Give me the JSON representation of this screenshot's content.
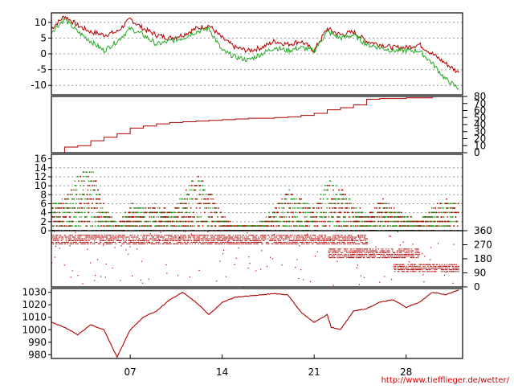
{
  "credit": "http://www.tiefflieger.de/wetter/",
  "colors": {
    "red": "#b00000",
    "green": "#22aa22",
    "grid": "#9a9a9a",
    "frame": "#000000"
  },
  "chart_data": [
    {
      "type": "line",
      "id": "temperature",
      "x_ticks": [
        "07",
        "14",
        "21",
        "28"
      ],
      "y_ticks": [
        "10",
        "5",
        "0",
        "-5",
        "-10"
      ],
      "ylim": [
        -13,
        13
      ],
      "grid": true,
      "series": [
        {
          "color": "red",
          "points": [
            [
              0,
              8
            ],
            [
              1,
              12
            ],
            [
              2,
              9
            ],
            [
              3,
              7
            ],
            [
              4,
              6
            ],
            [
              5,
              7
            ],
            [
              6,
              11
            ],
            [
              7,
              8
            ],
            [
              8,
              6
            ],
            [
              9,
              5
            ],
            [
              10,
              6
            ],
            [
              11,
              8
            ],
            [
              12,
              9
            ],
            [
              13,
              5
            ],
            [
              14,
              2
            ],
            [
              15,
              1
            ],
            [
              16,
              2
            ],
            [
              17,
              4
            ],
            [
              18,
              3
            ],
            [
              19,
              4
            ],
            [
              20,
              1
            ],
            [
              21,
              8
            ],
            [
              22,
              6
            ],
            [
              23,
              7
            ],
            [
              24,
              4
            ],
            [
              25,
              3
            ],
            [
              26,
              2
            ],
            [
              27,
              2
            ],
            [
              28,
              3
            ],
            [
              29,
              0
            ],
            [
              30,
              -3
            ],
            [
              31,
              -6
            ]
          ]
        },
        {
          "color": "green",
          "points": [
            [
              0,
              7
            ],
            [
              1,
              11
            ],
            [
              2,
              7
            ],
            [
              3,
              4
            ],
            [
              4,
              1
            ],
            [
              5,
              4
            ],
            [
              6,
              8
            ],
            [
              7,
              6
            ],
            [
              8,
              3
            ],
            [
              9,
              4
            ],
            [
              10,
              5
            ],
            [
              11,
              7
            ],
            [
              12,
              8
            ],
            [
              13,
              1
            ],
            [
              14,
              -1
            ],
            [
              15,
              -2
            ],
            [
              16,
              0
            ],
            [
              17,
              2
            ],
            [
              18,
              1
            ],
            [
              19,
              2
            ],
            [
              20,
              1
            ],
            [
              21,
              7
            ],
            [
              22,
              5
            ],
            [
              23,
              6
            ],
            [
              24,
              3
            ],
            [
              25,
              2
            ],
            [
              26,
              1
            ],
            [
              27,
              1
            ],
            [
              28,
              1
            ],
            [
              29,
              -3
            ],
            [
              30,
              -8
            ],
            [
              31,
              -11
            ]
          ]
        }
      ]
    },
    {
      "type": "line",
      "id": "cumulative",
      "y_ticks": [
        "80",
        "70",
        "60",
        "50",
        "40",
        "30",
        "20",
        "10",
        "0"
      ],
      "ylim": [
        0,
        80
      ],
      "series": [
        {
          "color": "red",
          "points": [
            [
              0,
              0
            ],
            [
              1,
              8
            ],
            [
              2,
              10
            ],
            [
              3,
              17
            ],
            [
              4,
              22
            ],
            [
              5,
              27
            ],
            [
              6,
              35
            ],
            [
              7,
              38
            ],
            [
              8,
              41
            ],
            [
              9,
              43
            ],
            [
              10,
              44
            ],
            [
              11,
              45
            ],
            [
              12,
              46
            ],
            [
              13,
              47
            ],
            [
              14,
              48
            ],
            [
              15,
              49
            ],
            [
              16,
              49
            ],
            [
              17,
              50
            ],
            [
              18,
              51
            ],
            [
              19,
              53
            ],
            [
              20,
              56
            ],
            [
              21,
              61
            ],
            [
              22,
              64
            ],
            [
              23,
              68
            ],
            [
              24,
              76
            ],
            [
              25,
              77
            ],
            [
              26,
              77
            ],
            [
              27,
              78
            ],
            [
              28,
              78
            ],
            [
              29,
              79
            ]
          ]
        }
      ]
    },
    {
      "type": "scatter",
      "id": "wind-speed",
      "y_ticks": [
        "16",
        "14",
        "12",
        "10",
        "8",
        "6",
        "4",
        "2",
        "0"
      ],
      "ylim": [
        0,
        17
      ],
      "envelope": [
        [
          0,
          6
        ],
        [
          1,
          7
        ],
        [
          2,
          12
        ],
        [
          3,
          14
        ],
        [
          4,
          5
        ],
        [
          5,
          1
        ],
        [
          6,
          6
        ],
        [
          7,
          5
        ],
        [
          8,
          6
        ],
        [
          9,
          4
        ],
        [
          10,
          8
        ],
        [
          11,
          13
        ],
        [
          12,
          9
        ],
        [
          13,
          3
        ],
        [
          14,
          1
        ],
        [
          15,
          1
        ],
        [
          16,
          2
        ],
        [
          17,
          5
        ],
        [
          18,
          9
        ],
        [
          19,
          7
        ],
        [
          20,
          5
        ],
        [
          21,
          12
        ],
        [
          22,
          9
        ],
        [
          23,
          6
        ],
        [
          24,
          3
        ],
        [
          25,
          7
        ],
        [
          26,
          5
        ],
        [
          27,
          3
        ],
        [
          28,
          2
        ],
        [
          29,
          5
        ],
        [
          30,
          7
        ],
        [
          31,
          6
        ]
      ]
    },
    {
      "type": "scatter",
      "id": "wind-direction",
      "y_ticks": [
        "360",
        "270",
        "180",
        "90",
        "0"
      ],
      "ylim": [
        0,
        360
      ],
      "bands": [
        [
          270,
          330,
          0,
          24
        ],
        [
          180,
          250,
          21,
          28
        ],
        [
          90,
          150,
          26,
          31
        ]
      ]
    },
    {
      "type": "line",
      "id": "pressure",
      "y_ticks": [
        "1030",
        "1020",
        "1010",
        "1000",
        "990",
        "980"
      ],
      "ylim": [
        977,
        1033
      ],
      "series": [
        {
          "color": "red",
          "points": [
            [
              0,
              1006
            ],
            [
              1,
              1002
            ],
            [
              2,
              996
            ],
            [
              3,
              1004
            ],
            [
              4,
              1000
            ],
            [
              5,
              978
            ],
            [
              6,
              1000
            ],
            [
              7,
              1010
            ],
            [
              8,
              1015
            ],
            [
              9,
              1024
            ],
            [
              10,
              1030
            ],
            [
              11,
              1022
            ],
            [
              12,
              1012
            ],
            [
              13,
              1022
            ],
            [
              14,
              1026
            ],
            [
              15,
              1027
            ],
            [
              16,
              1028
            ],
            [
              17,
              1029
            ],
            [
              18,
              1028
            ],
            [
              19,
              1014
            ],
            [
              20,
              1006
            ],
            [
              21,
              1012
            ],
            [
              21.3,
              1002
            ],
            [
              22,
              1000
            ],
            [
              23,
              1015
            ],
            [
              24,
              1017
            ],
            [
              25,
              1022
            ],
            [
              26,
              1024
            ],
            [
              27,
              1018
            ],
            [
              28,
              1022
            ],
            [
              29,
              1030
            ],
            [
              30,
              1028
            ],
            [
              31,
              1032
            ]
          ]
        }
      ]
    }
  ]
}
